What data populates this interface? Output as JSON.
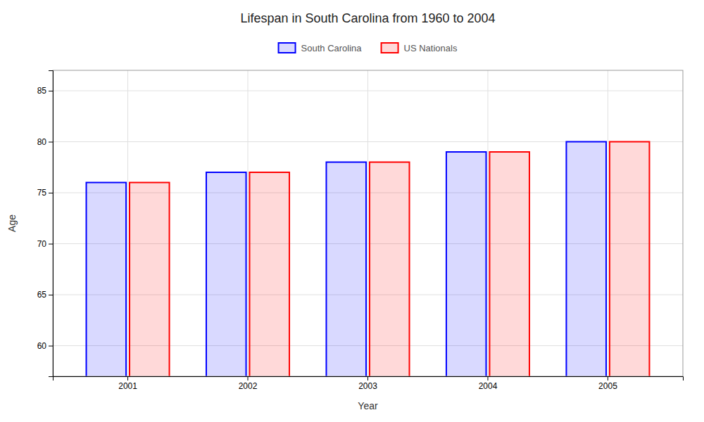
{
  "chart_data": {
    "type": "bar",
    "title": "Lifespan in South Carolina from 1960 to 2004",
    "x_label": "Year",
    "y_label": "Age",
    "categories": [
      "2001",
      "2002",
      "2003",
      "2004",
      "2005"
    ],
    "series": [
      {
        "name": "South Carolina",
        "color": "#0000ff",
        "values": [
          76,
          77,
          78,
          79,
          80
        ]
      },
      {
        "name": "US Nationals",
        "color": "#ff0000",
        "values": [
          76,
          77,
          78,
          79,
          80
        ]
      }
    ],
    "ylim": [
      57,
      87
    ],
    "yticks": [
      60,
      65,
      70,
      75,
      80,
      85
    ],
    "grid": true,
    "legend": "top"
  }
}
